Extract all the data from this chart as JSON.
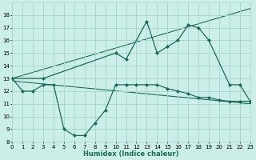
{
  "xlabel": "Humidex (Indice chaleur)",
  "bg_color": "#cceee8",
  "grid_color": "#a8d8d0",
  "line_color": "#1a6b5a",
  "series_upper_x": [
    0,
    3,
    10,
    11,
    13,
    14,
    15,
    16,
    17,
    18,
    19,
    21,
    22,
    23
  ],
  "series_upper_y": [
    13,
    13,
    15,
    14.5,
    17.5,
    15,
    15.5,
    16.0,
    17.2,
    17.0,
    16.0,
    12.5,
    12.5,
    11.2
  ],
  "series_lower_x": [
    0,
    1,
    2,
    3,
    4,
    5,
    6,
    7,
    8,
    9,
    10,
    11,
    12,
    13,
    14,
    15,
    16,
    17,
    18,
    19,
    20,
    21,
    22,
    23
  ],
  "series_lower_y": [
    13,
    12,
    12,
    12.5,
    12.5,
    9.0,
    8.5,
    8.5,
    9.5,
    10.5,
    12.5,
    12.5,
    12.5,
    12.5,
    12.5,
    12.2,
    12.0,
    11.8,
    11.5,
    11.5,
    11.3,
    11.2,
    11.2,
    11.2
  ],
  "trend1_x": [
    0,
    23
  ],
  "trend1_y": [
    13,
    18.5
  ],
  "trend2_x": [
    0,
    23
  ],
  "trend2_y": [
    12.8,
    11.0
  ],
  "xlim": [
    0,
    23
  ],
  "ylim": [
    8,
    19
  ],
  "yticks": [
    8,
    9,
    10,
    11,
    12,
    13,
    14,
    15,
    16,
    17,
    18
  ],
  "xticks": [
    0,
    1,
    2,
    3,
    4,
    5,
    6,
    7,
    8,
    9,
    10,
    11,
    12,
    13,
    14,
    15,
    16,
    17,
    18,
    19,
    20,
    21,
    22,
    23
  ],
  "xlabel_fontsize": 6,
  "tick_fontsize": 5
}
